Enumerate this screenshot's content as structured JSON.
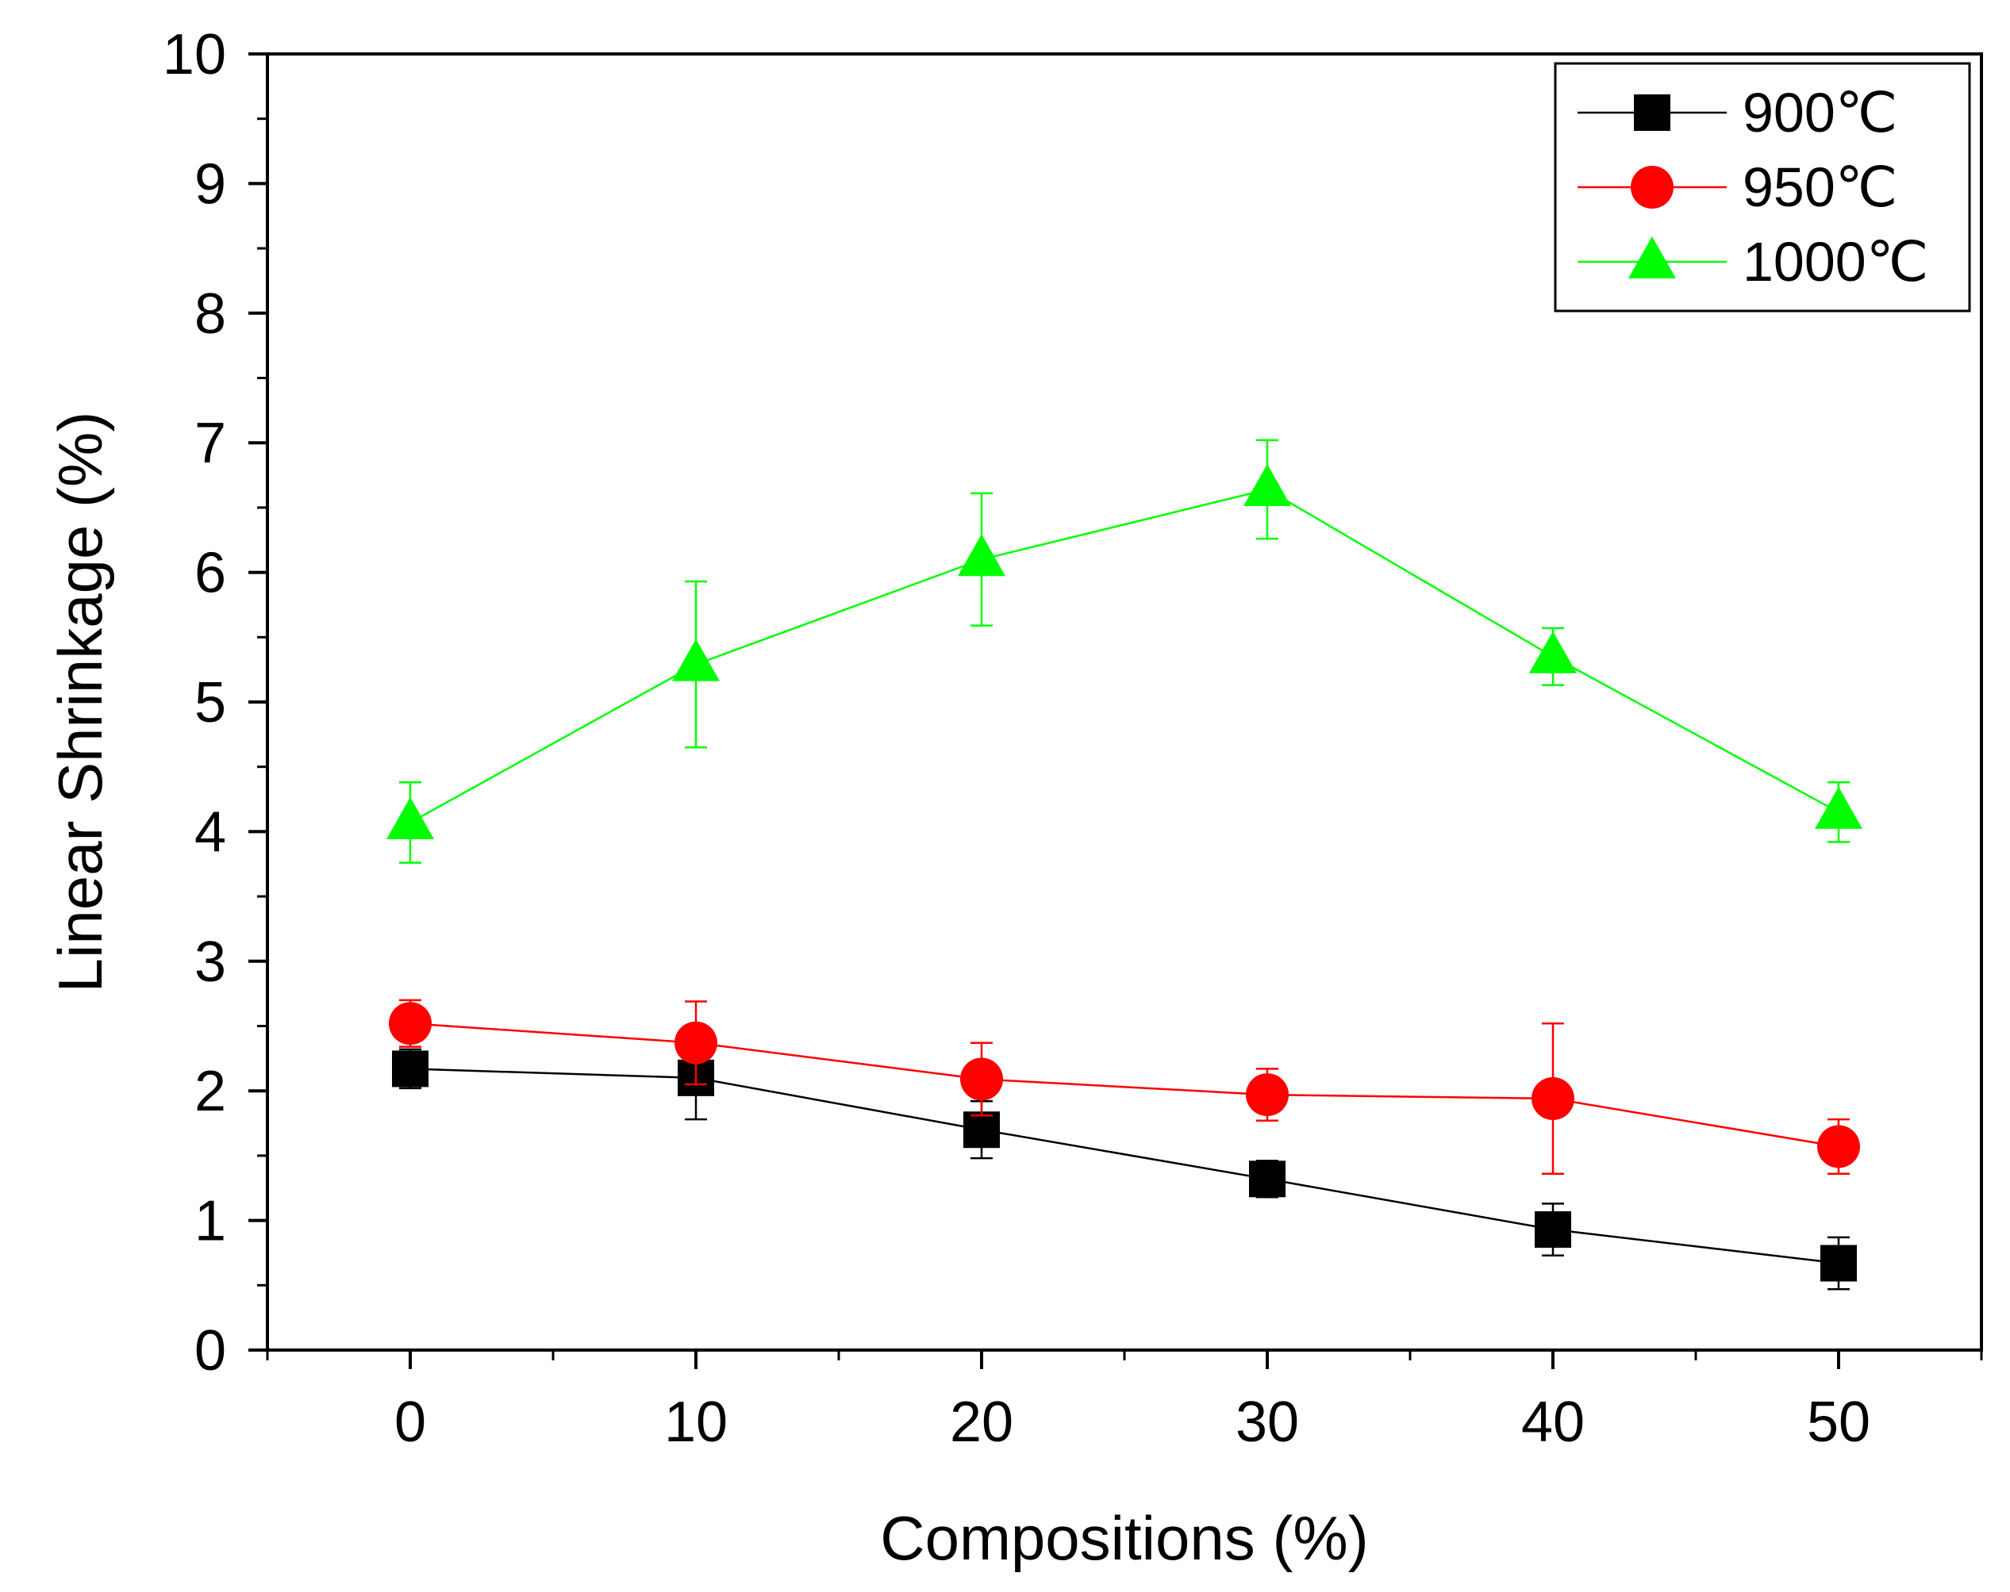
{
  "chart_data": {
    "type": "line",
    "xlabel": "Compositions (%)",
    "ylabel": "Linear Shrinkage (%)",
    "xlim": [
      -5,
      55
    ],
    "ylim": [
      0,
      10
    ],
    "x_ticks": [
      0,
      10,
      20,
      30,
      40,
      50
    ],
    "y_ticks": [
      0,
      1,
      2,
      3,
      4,
      5,
      6,
      7,
      8,
      9,
      10
    ],
    "legend_position": "top-right",
    "x": [
      0,
      10,
      20,
      30,
      40,
      50
    ],
    "series": [
      {
        "name": "900℃",
        "marker": "square",
        "color": "#000000",
        "values": [
          2.17,
          2.1,
          1.7,
          1.32,
          0.93,
          0.67
        ],
        "errors": [
          0.15,
          0.32,
          0.22,
          0.14,
          0.2,
          0.2
        ]
      },
      {
        "name": "950℃",
        "marker": "circle",
        "color": "#ff0000",
        "values": [
          2.52,
          2.37,
          2.09,
          1.97,
          1.94,
          1.57
        ],
        "errors": [
          0.18,
          0.32,
          0.28,
          0.2,
          0.58,
          0.21
        ]
      },
      {
        "name": "1000℃",
        "marker": "triangle",
        "color": "#00ff00",
        "values": [
          4.07,
          5.29,
          6.1,
          6.64,
          5.35,
          4.15
        ],
        "errors": [
          0.31,
          0.64,
          0.51,
          0.38,
          0.22,
          0.23
        ]
      }
    ]
  }
}
